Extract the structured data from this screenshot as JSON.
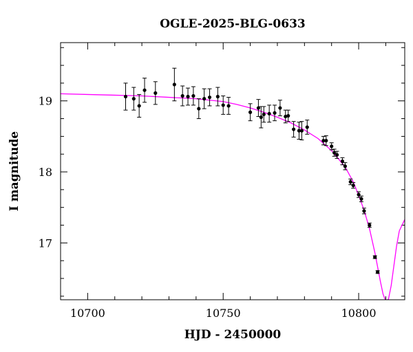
{
  "chart_data": {
    "type": "scatter",
    "title": "OGLE-2025-BLG-0633",
    "xlabel": "HJD - 2450000",
    "ylabel": "I magnitude",
    "xlim": [
      10690,
      10817
    ],
    "ylim": [
      19.82,
      16.2
    ],
    "y_inverted": true,
    "xticks_major": [
      10700,
      10750,
      10800
    ],
    "xticks_minor_step": 10,
    "yticks_major": [
      17,
      18,
      19
    ],
    "yticks_minor_step": 0.25,
    "x_tick_labels": [
      "10700",
      "10750",
      "10800"
    ],
    "y_tick_labels": [
      "17",
      "18",
      "19"
    ],
    "grid": false,
    "series": [
      {
        "kind": "points_with_errorbars",
        "color": "#000000",
        "x": [
          10714,
          10717,
          10719,
          10721,
          10725,
          10732,
          10735,
          10737,
          10739,
          10741,
          10743,
          10745,
          10748,
          10750,
          10752,
          10760,
          10763,
          10764,
          10765,
          10767,
          10769,
          10771,
          10773,
          10774,
          10776,
          10778,
          10779,
          10781,
          10787,
          10788,
          10790,
          10791,
          10792,
          10794,
          10795,
          10797,
          10798,
          10800,
          10801,
          10802,
          10804,
          10806,
          10807
        ],
        "y": [
          19.06,
          19.03,
          18.93,
          19.15,
          19.11,
          19.23,
          19.07,
          19.06,
          19.07,
          18.89,
          19.03,
          19.05,
          19.06,
          18.94,
          18.93,
          18.84,
          18.9,
          18.77,
          18.81,
          18.82,
          18.83,
          18.9,
          18.78,
          18.79,
          18.6,
          18.58,
          18.58,
          18.63,
          18.44,
          18.44,
          18.36,
          18.27,
          18.24,
          18.15,
          18.08,
          17.86,
          17.81,
          17.68,
          17.62,
          17.45,
          17.25,
          16.8,
          16.59
        ],
        "err": [
          0.19,
          0.16,
          0.16,
          0.17,
          0.16,
          0.23,
          0.14,
          0.12,
          0.13,
          0.14,
          0.14,
          0.12,
          0.13,
          0.13,
          0.12,
          0.12,
          0.12,
          0.15,
          0.11,
          0.12,
          0.11,
          0.11,
          0.09,
          0.08,
          0.11,
          0.12,
          0.13,
          0.1,
          0.06,
          0.07,
          0.05,
          0.05,
          0.05,
          0.05,
          0.05,
          0.04,
          0.04,
          0.04,
          0.04,
          0.04,
          0.03,
          0.02,
          0.02
        ]
      },
      {
        "kind": "model_curve",
        "color": "#ff00ff",
        "x": [
          10690,
          10700,
          10710,
          10720,
          10730,
          10740,
          10750,
          10755,
          10760,
          10765,
          10770,
          10775,
          10780,
          10785,
          10790,
          10795,
          10798,
          10800,
          10802,
          10804,
          10806,
          10808,
          10809,
          10810,
          10811,
          10812,
          10813,
          10814,
          10815,
          10817
        ],
        "y": [
          19.1,
          19.09,
          19.08,
          19.07,
          19.05,
          19.03,
          18.99,
          18.95,
          18.9,
          18.84,
          18.77,
          18.69,
          18.59,
          18.47,
          18.3,
          18.07,
          17.86,
          17.67,
          17.46,
          17.2,
          16.86,
          16.46,
          16.28,
          16.18,
          16.21,
          16.4,
          16.68,
          16.96,
          17.17,
          17.33
        ]
      }
    ]
  }
}
